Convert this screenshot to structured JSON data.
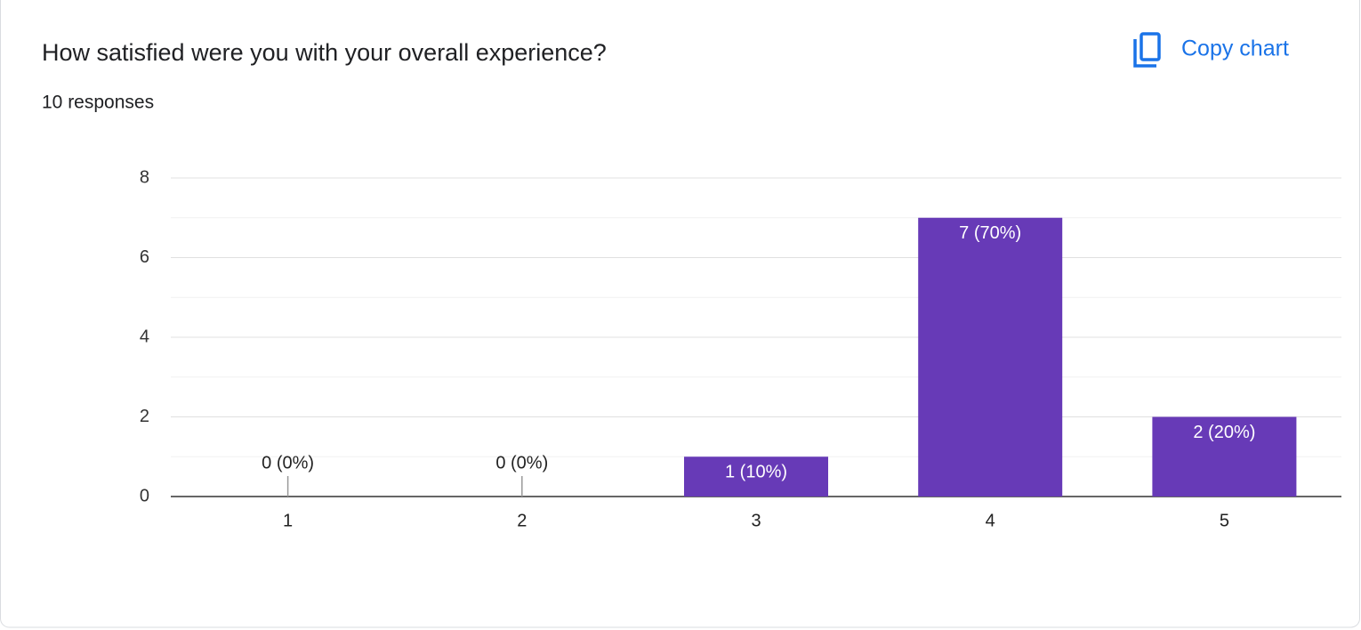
{
  "chart_data": {
    "type": "bar",
    "title": "How satisfied were you with your overall experience?",
    "subtitle": "10 responses",
    "categories": [
      "1",
      "2",
      "3",
      "4",
      "5"
    ],
    "values": [
      0,
      0,
      1,
      7,
      2
    ],
    "value_labels": [
      "0 (0%)",
      "0 (0%)",
      "1 (10%)",
      "7 (70%)",
      "2 (20%)"
    ],
    "color": "#673ab7",
    "ylim": [
      0,
      8
    ],
    "yticks": [
      0,
      2,
      4,
      6,
      8
    ],
    "minor_yticks": [
      1,
      3,
      5,
      7
    ],
    "grid": true
  },
  "actions": {
    "copy": "Copy chart"
  }
}
